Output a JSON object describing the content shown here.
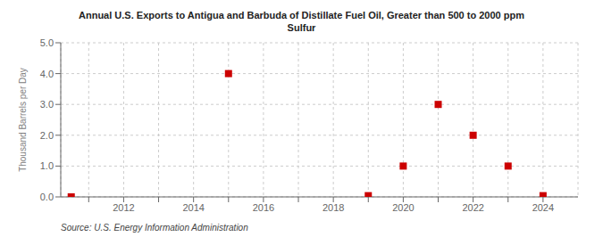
{
  "chart_data": {
    "type": "scatter",
    "title": "Annual U.S. Exports to Antigua and Barbuda of Distillate Fuel Oil, Greater than 500 to 2000 ppm\nSulfur",
    "y_label": "Thousand Barrels per Day",
    "annotations": [
      "Source: U.S. Energy Information Administration"
    ],
    "x": [
      2010.5,
      2015,
      2019,
      2020,
      2021,
      2022,
      2023,
      2024
    ],
    "values": [
      0.0,
      4.0,
      0.04,
      1.0,
      3.0,
      2.0,
      1.0,
      0.04
    ],
    "color": "#cc0000",
    "marker": "square",
    "grid": true,
    "xlim": [
      2010.2,
      2025.0
    ],
    "ylim": [
      0.0,
      5.0
    ],
    "xticks": [
      {
        "value": 2011,
        "label": null
      },
      2012,
      {
        "value": 2013,
        "label": null
      },
      2014,
      {
        "value": 2015,
        "label": null
      },
      2016,
      {
        "value": 2017,
        "label": null
      },
      2018,
      {
        "value": 2019,
        "label": null
      },
      2020,
      {
        "value": 2021,
        "label": null
      },
      2022,
      {
        "value": 2023,
        "label": null
      },
      2024
    ],
    "yticks": [
      {
        "value": 0.0,
        "label": "0.0"
      },
      {
        "value": 1.0,
        "label": "1.0"
      },
      {
        "value": 2.0,
        "label": "2.0"
      },
      {
        "value": 3.0,
        "label": "3.0"
      },
      {
        "value": 4.0,
        "label": "4.0"
      },
      {
        "value": 5.0,
        "label": "5.0"
      }
    ]
  }
}
